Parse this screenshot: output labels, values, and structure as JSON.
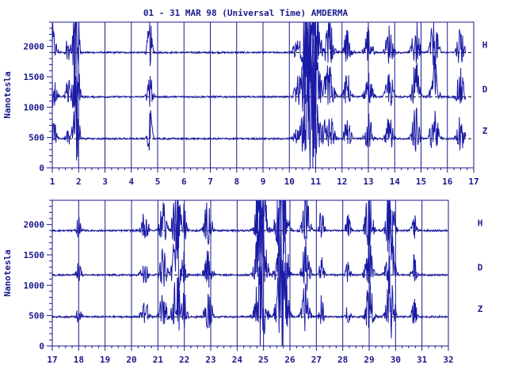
{
  "chart_data": {
    "type": "line",
    "title": "01 - 31 MAR 98 (Universal Time) AMDERMA",
    "ylabel": "Nanotesla",
    "ylim": [
      0,
      2400
    ],
    "y_ticks": [
      0,
      500,
      1000,
      1500,
      2000
    ],
    "components": [
      {
        "name": "H",
        "baseline": 1900
      },
      {
        "name": "D",
        "baseline": 1170
      },
      {
        "name": "Z",
        "baseline": 480
      }
    ],
    "panels": [
      {
        "x_ticks": [
          "1",
          "2",
          "3",
          "4",
          "5",
          "6",
          "7",
          "8",
          "9",
          "10",
          "11",
          "12",
          "13",
          "14",
          "15",
          "16",
          "17"
        ],
        "xlim": [
          1,
          17
        ],
        "disturbances": [
          {
            "day": 1.0,
            "amp": 350,
            "width": 0.15
          },
          {
            "day": 1.6,
            "amp": 250,
            "width": 0.1
          },
          {
            "day": 1.9,
            "amp": 900,
            "width": 0.12
          },
          {
            "day": 4.7,
            "amp": 420,
            "width": 0.1
          },
          {
            "day": 10.3,
            "amp": 200,
            "width": 0.15
          },
          {
            "day": 10.8,
            "amp": 1300,
            "width": 0.3
          },
          {
            "day": 11.5,
            "amp": 400,
            "width": 0.2
          },
          {
            "day": 12.2,
            "amp": 300,
            "width": 0.15
          },
          {
            "day": 13.0,
            "amp": 350,
            "width": 0.15
          },
          {
            "day": 13.8,
            "amp": 350,
            "width": 0.15
          },
          {
            "day": 14.8,
            "amp": 450,
            "width": 0.15
          },
          {
            "day": 15.5,
            "amp": 500,
            "width": 0.15
          },
          {
            "day": 16.5,
            "amp": 350,
            "width": 0.15
          }
        ]
      },
      {
        "x_ticks": [
          "17",
          "18",
          "19",
          "20",
          "21",
          "22",
          "23",
          "24",
          "25",
          "26",
          "27",
          "28",
          "29",
          "30",
          "31",
          "32"
        ],
        "xlim": [
          17,
          32
        ],
        "disturbances": [
          {
            "day": 18.0,
            "amp": 200,
            "width": 0.1
          },
          {
            "day": 20.5,
            "amp": 250,
            "width": 0.15
          },
          {
            "day": 21.2,
            "amp": 350,
            "width": 0.15
          },
          {
            "day": 21.7,
            "amp": 700,
            "width": 0.15
          },
          {
            "day": 22.0,
            "amp": 350,
            "width": 0.1
          },
          {
            "day": 22.9,
            "amp": 400,
            "width": 0.15
          },
          {
            "day": 24.9,
            "amp": 900,
            "width": 0.2
          },
          {
            "day": 25.7,
            "amp": 1100,
            "width": 0.2
          },
          {
            "day": 26.6,
            "amp": 500,
            "width": 0.15
          },
          {
            "day": 27.2,
            "amp": 300,
            "width": 0.1
          },
          {
            "day": 28.2,
            "amp": 200,
            "width": 0.1
          },
          {
            "day": 29.0,
            "amp": 550,
            "width": 0.15
          },
          {
            "day": 29.8,
            "amp": 850,
            "width": 0.15
          },
          {
            "day": 30.7,
            "amp": 250,
            "width": 0.1
          }
        ]
      }
    ]
  },
  "colors": {
    "trace": "#1a1aa6",
    "axis": "#1a1a8c",
    "baseline_dash": "#000000"
  }
}
